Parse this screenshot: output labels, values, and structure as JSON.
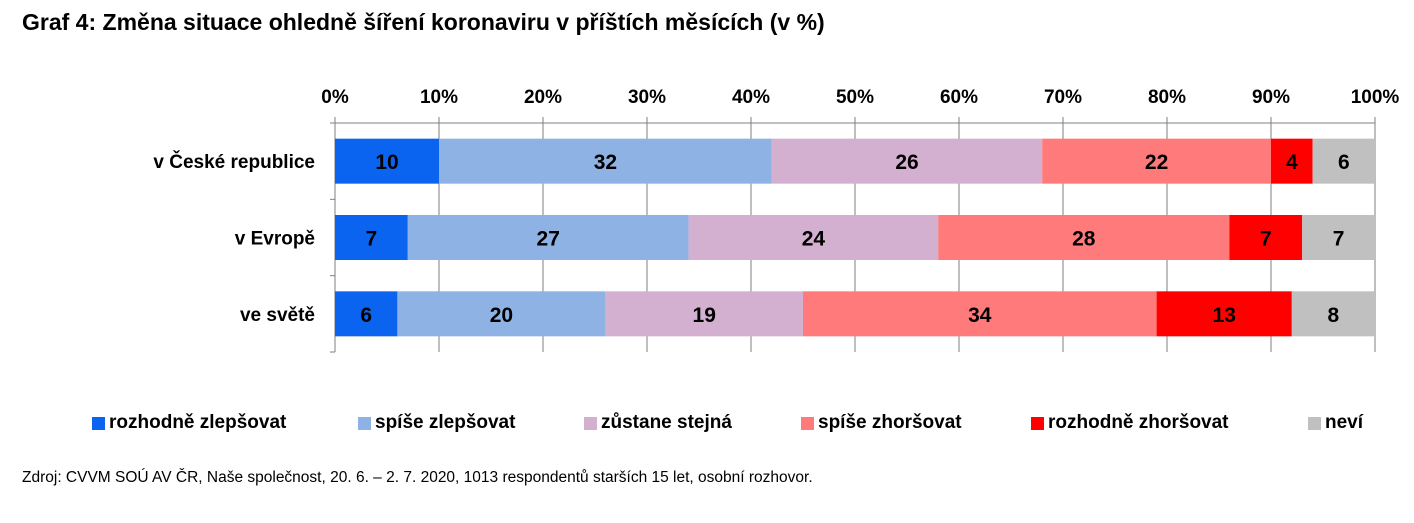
{
  "title": "Graf 4: Změna situace ohledně šíření koronaviru v příštích měsících (v %)",
  "source": "Zdroj: CVVM SOÚ AV ČR, Naše společnost, 20. 6. – 2. 7. 2020, 1013 respondentů starších 15 let, osobní rozhovor.",
  "chart_data": {
    "type": "bar",
    "orientation": "horizontal",
    "stacked": "100%",
    "title": "Graf 4: Změna situace ohledně šíření koronaviru v příštích měsících (v %)",
    "categories": [
      "v České republice",
      "v Evropě",
      "ve světě"
    ],
    "xlim": [
      0,
      100
    ],
    "xaxis_position": "top",
    "ticks": [
      "0%",
      "10%",
      "20%",
      "30%",
      "40%",
      "50%",
      "60%",
      "70%",
      "80%",
      "90%",
      "100%"
    ],
    "grid": true,
    "legend_position": "bottom",
    "series": [
      {
        "name": "rozhodně zlepšovat",
        "color": "#0a64f0",
        "values": [
          10,
          7,
          6
        ]
      },
      {
        "name": "spíše zlepšovat",
        "color": "#8db2e3",
        "values": [
          32,
          27,
          20
        ]
      },
      {
        "name": "zůstane stejná",
        "color": "#d3afd0",
        "values": [
          26,
          24,
          19
        ]
      },
      {
        "name": "spíše zhoršovat",
        "color": "#ff7b7b",
        "values": [
          22,
          28,
          34
        ]
      },
      {
        "name": "rozhodně zhoršovat",
        "color": "#ff0000",
        "values": [
          4,
          7,
          13
        ]
      },
      {
        "name": "neví",
        "color": "#c0c0c0",
        "values": [
          6,
          7,
          8
        ]
      }
    ]
  }
}
